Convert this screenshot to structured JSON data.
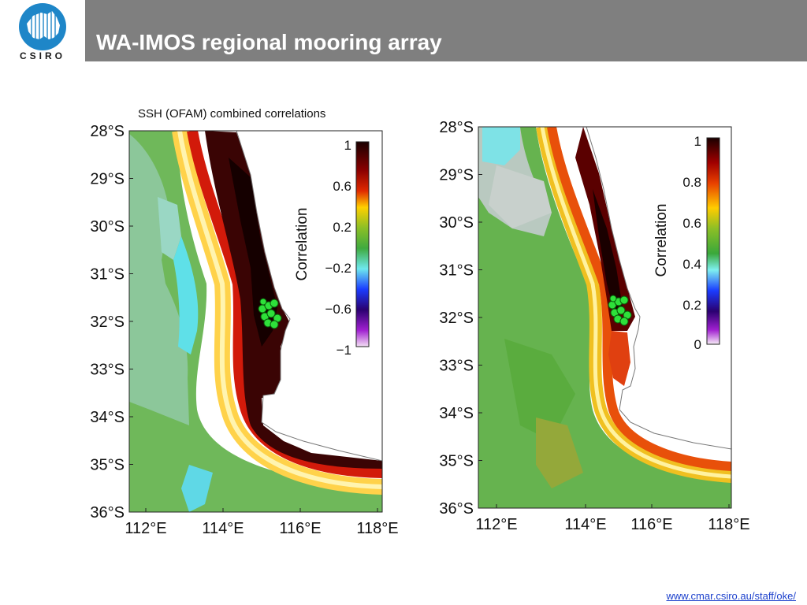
{
  "header": {
    "title": "WA-IMOS regional mooring array",
    "logo_text": "CSIRO",
    "logo_icon": "csiro-globe-icon",
    "bar_color": "#7f7f7f",
    "logo_color": "#1e86c8"
  },
  "figure": {
    "panel_left": {
      "title": "SSH (OFAM) combined correlations",
      "y_ticks": [
        "28°S",
        "29°S",
        "30°S",
        "31°S",
        "32°S",
        "33°S",
        "34°S",
        "35°S",
        "36°S"
      ],
      "x_ticks": [
        "112°E",
        "114°E",
        "116°E",
        "118°E"
      ],
      "colorbar_label": "Correlation",
      "colorbar_ticks": [
        "1",
        "0.6",
        "0.2",
        "−0.2",
        "−0.6",
        "−1"
      ]
    },
    "panel_right": {
      "y_ticks": [
        "28°S",
        "29°S",
        "30°S",
        "31°S",
        "32°S",
        "33°S",
        "34°S",
        "35°S",
        "36°S"
      ],
      "x_ticks": [
        "112°E",
        "114°E",
        "116°E",
        "118°E"
      ],
      "colorbar_label": "Correlation",
      "colorbar_ticks": [
        "1",
        "0.8",
        "0.6",
        "0.4",
        "0.2",
        "0"
      ]
    },
    "mooring_marker_color": "#22dd22"
  },
  "footer": {
    "link": "www.cmar.csiro.au/staff/oke/"
  }
}
